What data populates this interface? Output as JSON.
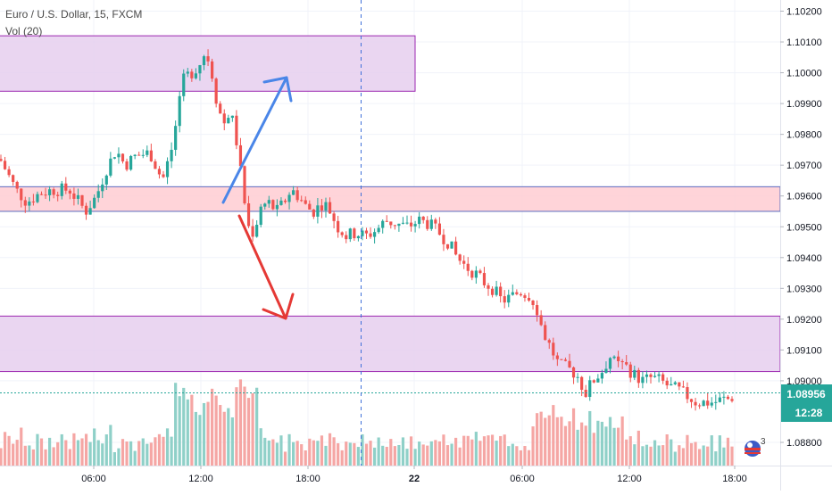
{
  "legend": {
    "symbol": "Euro / U.S. Dollar, 15, FXCM",
    "volume": "Vol (20)"
  },
  "price_axis": {
    "current_price_label": "1.08956",
    "countdown_label": "12:28"
  },
  "badge": {
    "count": "3"
  },
  "colors": {
    "up": "#26a69a",
    "down": "#ef5350",
    "up_volume": "#8fd0c8",
    "down_volume": "#f5a6a4",
    "zone_purple": "#e6cfee",
    "zone_purple_border": "#9c27b0",
    "zone_red": "#ffcdd2",
    "zone_red_border": "#5c6bc0",
    "arrow_blue": "#4a86e8",
    "arrow_red": "#e53935",
    "session_line": "#3f6fd9",
    "price_tag": "#26a69a"
  },
  "chart_data": {
    "type": "candlestick",
    "title": "Euro / U.S. Dollar, 15, FXCM",
    "interval": "15",
    "y_ticks": [
      "1.10200",
      "1.10100",
      "1.10000",
      "1.09900",
      "1.09800",
      "1.09700",
      "1.09600",
      "1.09500",
      "1.09400",
      "1.09300",
      "1.09200",
      "1.09100",
      "1.09000",
      "1.08800"
    ],
    "ylim": [
      1.0874,
      1.1025
    ],
    "x_ticks": [
      "06:00",
      "12:00",
      "18:00",
      "22",
      "06:00",
      "12:00",
      "18:00"
    ],
    "current_price": 1.08956,
    "zones": [
      {
        "kind": "purple",
        "from": 1.0994,
        "to": 1.1012
      },
      {
        "kind": "red",
        "from": 1.0955,
        "to": 1.0963
      },
      {
        "kind": "purple",
        "from": 1.0903,
        "to": 1.0921
      }
    ],
    "price_path": [
      [
        0,
        1.0972
      ],
      [
        18,
        1.0962
      ],
      [
        30,
        1.0958
      ],
      [
        45,
        1.0961
      ],
      [
        60,
        1.0962
      ],
      [
        78,
        1.0962
      ],
      [
        96,
        1.0955
      ],
      [
        108,
        1.096
      ],
      [
        118,
        1.0968
      ],
      [
        130,
        1.0975
      ],
      [
        140,
        1.097
      ],
      [
        152,
        1.0973
      ],
      [
        168,
        1.0974
      ],
      [
        182,
        1.0965
      ],
      [
        192,
        1.0975
      ],
      [
        198,
        1.0985
      ],
      [
        206,
        1.0998
      ],
      [
        214,
        1.1
      ],
      [
        222,
        1.1002
      ],
      [
        228,
        1.1006
      ],
      [
        235,
        1.1004
      ],
      [
        242,
        1.0992
      ],
      [
        250,
        1.0983
      ],
      [
        258,
        1.0988
      ],
      [
        266,
        1.0976
      ],
      [
        272,
        1.0962
      ],
      [
        278,
        1.095
      ],
      [
        284,
        1.0948
      ],
      [
        292,
        1.0956
      ],
      [
        300,
        1.0958
      ],
      [
        310,
        1.0955
      ],
      [
        318,
        1.0958
      ],
      [
        326,
        1.0962
      ],
      [
        334,
        1.096
      ],
      [
        344,
        1.0956
      ],
      [
        352,
        1.0955
      ],
      [
        362,
        1.0958
      ],
      [
        370,
        1.0955
      ],
      [
        378,
        1.095
      ],
      [
        388,
        1.0947
      ],
      [
        398,
        1.0948
      ],
      [
        410,
        1.0947
      ],
      [
        422,
        1.0949
      ],
      [
        432,
        1.0952
      ],
      [
        444,
        1.0951
      ],
      [
        456,
        1.095
      ],
      [
        470,
        1.0952
      ],
      [
        480,
        1.0951
      ],
      [
        492,
        1.0948
      ],
      [
        502,
        1.0945
      ],
      [
        512,
        1.094
      ],
      [
        522,
        1.0937
      ],
      [
        532,
        1.0935
      ],
      [
        542,
        1.0932
      ],
      [
        552,
        1.093
      ],
      [
        562,
        1.0926
      ],
      [
        572,
        1.0927
      ],
      [
        582,
        1.0929
      ],
      [
        592,
        1.0928
      ],
      [
        600,
        1.0925
      ],
      [
        608,
        1.0916
      ],
      [
        618,
        1.091
      ],
      [
        626,
        1.0905
      ],
      [
        636,
        1.0904
      ],
      [
        646,
        1.0902
      ],
      [
        656,
        1.0896
      ],
      [
        664,
        1.09
      ],
      [
        674,
        1.0903
      ],
      [
        684,
        1.0908
      ],
      [
        690,
        1.0905
      ],
      [
        700,
        1.0905
      ],
      [
        710,
        1.0902
      ],
      [
        720,
        1.09
      ],
      [
        730,
        1.0901
      ],
      [
        740,
        1.09
      ],
      [
        750,
        1.0898
      ],
      [
        760,
        1.0897
      ],
      [
        770,
        1.0895
      ],
      [
        780,
        1.0893
      ],
      [
        790,
        1.0893
      ],
      [
        800,
        1.0893
      ],
      [
        810,
        1.0894
      ],
      [
        818,
        1.0894
      ],
      [
        824,
        1.0896
      ]
    ]
  }
}
